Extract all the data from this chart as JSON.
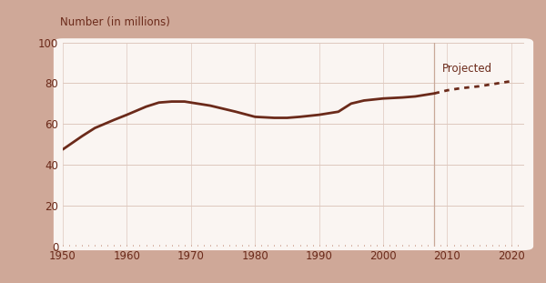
{
  "historical_years": [
    1950,
    1953,
    1955,
    1958,
    1960,
    1963,
    1965,
    1967,
    1969,
    1970,
    1973,
    1975,
    1977,
    1980,
    1983,
    1985,
    1987,
    1990,
    1993,
    1995,
    1997,
    2000,
    2003,
    2005,
    2007,
    2008
  ],
  "historical_values": [
    47.5,
    54,
    58,
    62,
    64.5,
    68.5,
    70.5,
    71,
    71,
    70.5,
    69,
    67.5,
    66,
    63.5,
    63,
    63,
    63.5,
    64.5,
    66,
    70,
    71.5,
    72.5,
    73,
    73.5,
    74.5,
    75
  ],
  "projected_years": [
    2008,
    2010,
    2012,
    2015,
    2018,
    2020
  ],
  "projected_values": [
    75,
    76.5,
    77.5,
    78.5,
    80,
    81
  ],
  "line_color": "#6B2A1A",
  "bg_outer": "#CFA898",
  "bg_inner": "#FAF5F2",
  "grid_color": "#DEC8BE",
  "divider_color": "#C8A898",
  "ylabel": "Number (in millions)",
  "ylabel_color": "#6B2A1A",
  "ylabel_fontsize": 8.5,
  "projected_label": "Projected",
  "projected_label_color": "#6B2A1A",
  "projected_label_fontsize": 8.5,
  "xlim": [
    1950,
    2022
  ],
  "ylim": [
    0,
    100
  ],
  "yticks": [
    0,
    20,
    40,
    60,
    80,
    100
  ],
  "xticks": [
    1950,
    1960,
    1970,
    1980,
    1990,
    2000,
    2010,
    2020
  ],
  "divider_x": 2008,
  "tick_fontsize": 8.5,
  "linewidth": 2.0
}
